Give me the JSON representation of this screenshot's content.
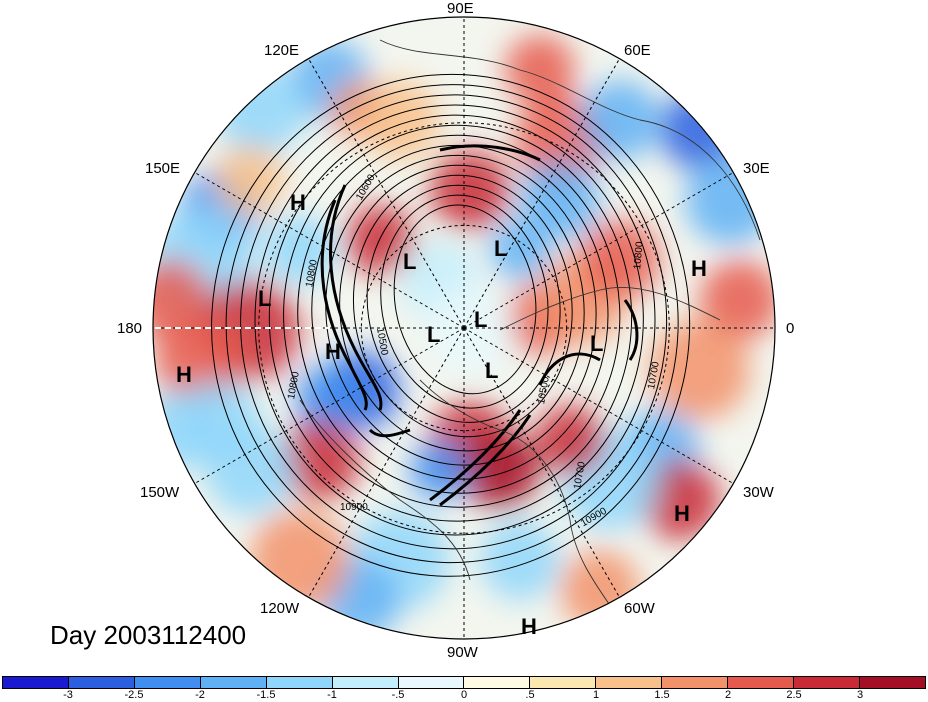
{
  "title": "Day 2003112400",
  "longitude_labels": [
    "90E",
    "60E",
    "30E",
    "0",
    "30W",
    "60W",
    "90W",
    "120W",
    "150W",
    "180",
    "150E",
    "120E"
  ],
  "pressure_centers": [
    {
      "type": "H",
      "lon_label": "150E"
    },
    {
      "type": "L",
      "region": "pacific"
    },
    {
      "type": "H",
      "region": "pacific"
    },
    {
      "type": "L",
      "region": "siberia"
    },
    {
      "type": "L",
      "region": "kara"
    },
    {
      "type": "L",
      "region": "pole"
    },
    {
      "type": "L",
      "region": "canada"
    },
    {
      "type": "L",
      "region": "baffin"
    },
    {
      "type": "L",
      "region": "atlantic"
    },
    {
      "type": "H",
      "region": "europe"
    },
    {
      "type": "H",
      "region": "alaska"
    },
    {
      "type": "H",
      "region": "atlantic"
    },
    {
      "type": "H",
      "region": "caribbean"
    }
  ],
  "contour_labels": [
    "10800",
    "10600",
    "10500",
    "10800",
    "10700",
    "10500",
    "10700",
    "10900",
    "10900",
    "10800"
  ],
  "colorbar": {
    "ticks": [
      "-3",
      "-2.5",
      "-2",
      "-1.5",
      "-1",
      "-.5",
      "0",
      ".5",
      "1",
      "1.5",
      "2",
      "2.5",
      "3"
    ],
    "colors": [
      "#1a1ad0",
      "#2c5fe0",
      "#3f8ef0",
      "#5fb0f5",
      "#8fd6fa",
      "#c3eefc",
      "#e8f8fc",
      "#fdfbe3",
      "#fbe7b0",
      "#f8c08a",
      "#f2926a",
      "#e65a4e",
      "#c82a36",
      "#a50f26"
    ]
  }
}
